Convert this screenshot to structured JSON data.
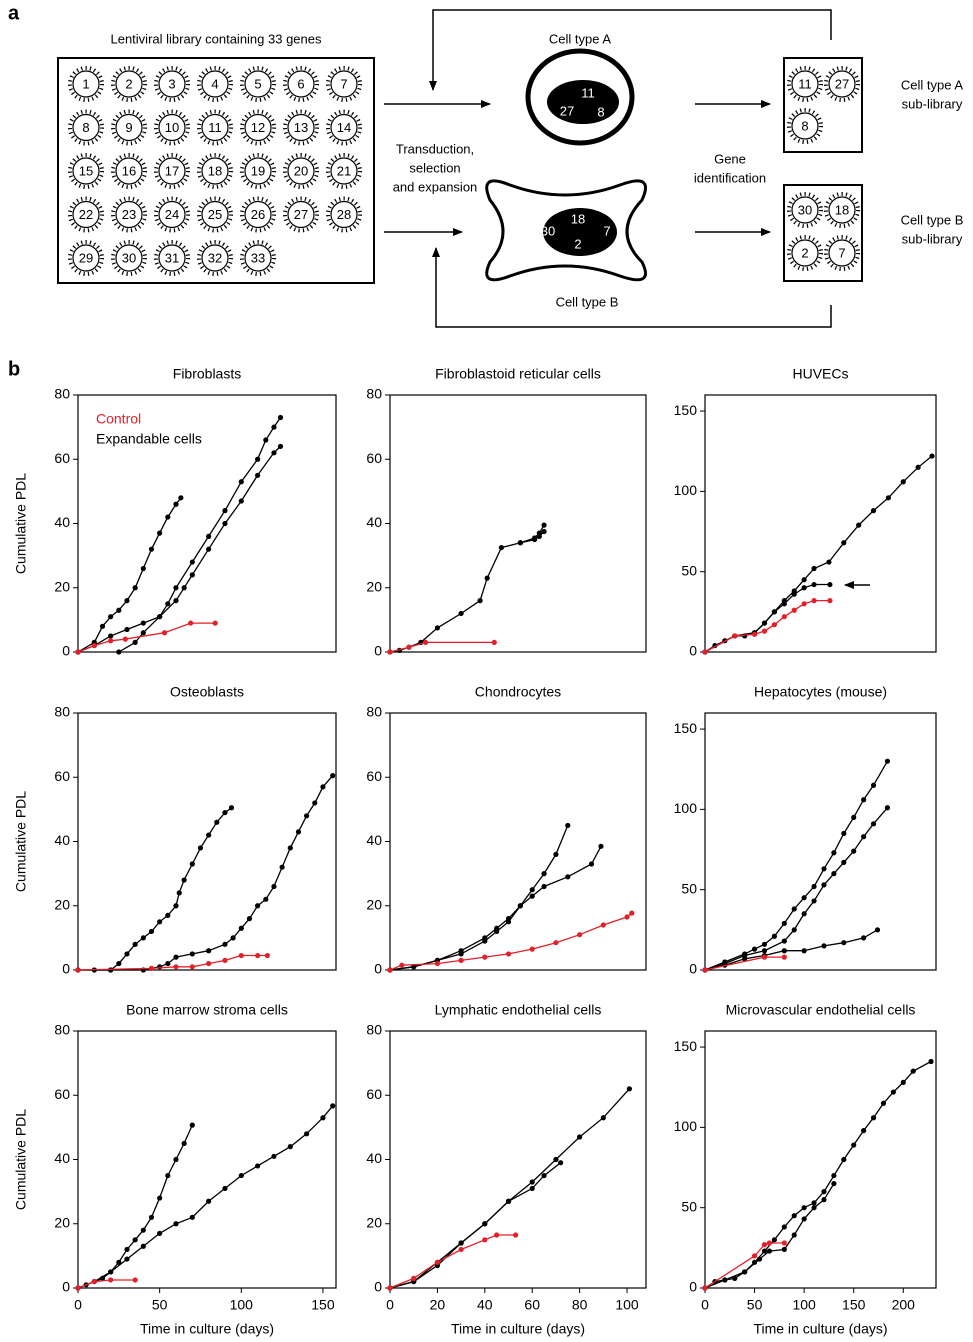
{
  "panel_a": {
    "label": "a",
    "library_title": "Lentiviral library containing 33 genes",
    "library_genes": [
      1,
      2,
      3,
      4,
      5,
      6,
      7,
      8,
      9,
      10,
      11,
      12,
      13,
      14,
      15,
      16,
      17,
      18,
      19,
      20,
      21,
      22,
      23,
      24,
      25,
      26,
      27,
      28,
      29,
      30,
      31,
      32,
      33
    ],
    "cell_a": {
      "name": "Cell type A",
      "genes": [
        11,
        27,
        8
      ]
    },
    "cell_b": {
      "name": "Cell type B",
      "genes": [
        30,
        18,
        2,
        7
      ]
    },
    "step_1": [
      "Transduction,",
      "selection",
      "and expansion"
    ],
    "step_2": [
      "Gene",
      "identification"
    ],
    "sublibrary_a": {
      "genes": [
        11,
        27,
        8
      ],
      "label": [
        "Cell type A",
        "sub-library"
      ]
    },
    "sublibrary_b": {
      "genes": [
        30,
        18,
        2,
        7
      ],
      "label": [
        "Cell type B",
        "sub-library"
      ]
    }
  },
  "panel_b_label": "b",
  "chart_data": [
    {
      "type": "line",
      "title": "Fibroblasts",
      "ylabel": "Cumulative PDL",
      "xlim": [
        0,
        158
      ],
      "ylim": [
        0,
        80
      ],
      "yticks": [
        0,
        20,
        40,
        60,
        80
      ],
      "legend_loc": "upper left",
      "legend": [
        {
          "name": "Control",
          "color": "#e3202a"
        },
        {
          "name": "Expandable cells",
          "color": "#000000"
        }
      ],
      "series": [
        {
          "color": "#000000",
          "x": [
            0,
            10,
            15,
            20,
            25,
            30,
            35,
            40,
            45,
            50,
            55,
            60,
            63
          ],
          "values": [
            0,
            3,
            8,
            11,
            13,
            16,
            20,
            26,
            32,
            37,
            42,
            46,
            48
          ]
        },
        {
          "color": "#000000",
          "x": [
            0,
            10,
            20,
            30,
            40,
            50,
            55,
            60,
            70,
            80,
            90,
            100,
            110,
            115,
            120,
            124
          ],
          "values": [
            0,
            2,
            5,
            7,
            9,
            11,
            15,
            20,
            28,
            36,
            44,
            53,
            60,
            66,
            70,
            73
          ]
        },
        {
          "color": "#000000",
          "x": [
            25,
            35,
            40,
            50,
            60,
            65,
            70,
            80,
            90,
            100,
            110,
            120,
            124
          ],
          "values": [
            0,
            3,
            6,
            11,
            16,
            20,
            24,
            32,
            40,
            47,
            55,
            62,
            64
          ]
        },
        {
          "color": "#e3202a",
          "x": [
            0,
            10,
            20,
            29,
            53,
            69,
            84
          ],
          "values": [
            0,
            2,
            3.5,
            4,
            6,
            9,
            9
          ]
        }
      ]
    },
    {
      "type": "line",
      "title": "Fibroblastoid reticular cells",
      "xlim": [
        0,
        108
      ],
      "ylim": [
        0,
        80
      ],
      "yticks": [
        0,
        20,
        40,
        60,
        80
      ],
      "series": [
        {
          "color": "#000000",
          "x": [
            0,
            4,
            8,
            13,
            20,
            30,
            38,
            41,
            47,
            55,
            61,
            63,
            65
          ],
          "values": [
            0,
            0.5,
            1.5,
            3,
            7.5,
            12,
            16,
            23,
            32.5,
            34,
            35.5,
            37,
            39.5
          ]
        },
        {
          "color": "#000000",
          "x": [
            55,
            61,
            63,
            65
          ],
          "values": [
            34,
            35,
            36,
            37.5
          ]
        },
        {
          "color": "#e3202a",
          "x": [
            0,
            8,
            15,
            44
          ],
          "values": [
            0,
            1.5,
            3,
            3
          ]
        }
      ]
    },
    {
      "type": "line",
      "title": "HUVECs",
      "xlim": [
        0,
        233
      ],
      "ylim": [
        0,
        160
      ],
      "yticks": [
        0,
        50,
        100,
        150
      ],
      "series": [
        {
          "color": "#000000",
          "x": [
            0,
            10,
            20,
            30,
            40,
            50,
            60,
            70,
            80,
            90,
            100,
            110,
            125,
            140,
            155,
            170,
            185,
            200,
            215,
            229
          ],
          "values": [
            0,
            4,
            7,
            10,
            10,
            12,
            18,
            25,
            32,
            38,
            45,
            52,
            56,
            68,
            79,
            88,
            96,
            106,
            115,
            122
          ]
        },
        {
          "color": "#000000",
          "x": [
            0,
            30,
            50,
            60,
            70,
            80,
            90,
            100,
            110,
            126
          ],
          "values": [
            0,
            10,
            12,
            18,
            25,
            30,
            36,
            40,
            42,
            42
          ]
        },
        {
          "color": "#e3202a",
          "x": [
            0,
            30,
            50,
            60,
            70,
            80,
            90,
            100,
            110,
            126
          ],
          "values": [
            0,
            10,
            11,
            13,
            17,
            22,
            26,
            30,
            32,
            32
          ]
        }
      ]
    },
    {
      "type": "line",
      "title": "Osteoblasts",
      "ylabel": "Cumulative PDL",
      "xlim": [
        0,
        158
      ],
      "ylim": [
        0,
        80
      ],
      "yticks": [
        0,
        20,
        40,
        60,
        80
      ],
      "series": [
        {
          "color": "#000000",
          "x": [
            0,
            10,
            20,
            25,
            30,
            35,
            40,
            45,
            50,
            55,
            60,
            62,
            65,
            70,
            75,
            80,
            85,
            90,
            94
          ],
          "values": [
            0,
            0,
            0,
            2,
            5,
            8,
            10,
            12,
            15,
            17,
            20,
            24,
            28,
            33,
            38,
            42,
            46,
            49,
            50.5
          ]
        },
        {
          "color": "#000000",
          "x": [
            0,
            20,
            40,
            50,
            55,
            60,
            70,
            80,
            90,
            95,
            100,
            105,
            110,
            115,
            120,
            125,
            130,
            135,
            140,
            145,
            150,
            156
          ],
          "values": [
            0,
            0,
            0,
            1,
            2,
            4,
            5,
            6,
            8,
            10,
            13,
            16,
            20,
            22,
            26,
            32,
            38,
            43,
            48,
            52,
            57,
            60.5
          ]
        },
        {
          "color": "#e3202a",
          "x": [
            0,
            45,
            60,
            70,
            80,
            90,
            100,
            110,
            116
          ],
          "values": [
            0,
            0.5,
            1,
            1,
            2,
            3,
            4.5,
            4.5,
            4.5
          ]
        }
      ]
    },
    {
      "type": "line",
      "title": "Chondrocytes",
      "xlim": [
        0,
        108
      ],
      "ylim": [
        0,
        80
      ],
      "yticks": [
        0,
        20,
        40,
        60,
        80
      ],
      "series": [
        {
          "color": "#000000",
          "x": [
            0,
            10,
            20,
            30,
            40,
            45,
            50,
            55,
            60,
            65,
            70,
            75
          ],
          "values": [
            0,
            1,
            3,
            6,
            10,
            13,
            16,
            20,
            25,
            30,
            36,
            45
          ]
        },
        {
          "color": "#000000",
          "x": [
            0,
            10,
            20,
            30,
            40,
            45,
            50,
            55,
            60,
            65,
            75,
            85,
            89
          ],
          "values": [
            0,
            1,
            3,
            5,
            9,
            12,
            15,
            20,
            23,
            26,
            29,
            33,
            38.5
          ]
        },
        {
          "color": "#e3202a",
          "x": [
            0,
            5,
            20,
            30,
            40,
            50,
            60,
            70,
            80,
            90,
            100,
            102
          ],
          "values": [
            0,
            1.5,
            2,
            3,
            4,
            5,
            6.5,
            8.5,
            11,
            14,
            16.5,
            17.7
          ]
        }
      ]
    },
    {
      "type": "line",
      "title": "Hepatocytes (mouse)",
      "xlim": [
        0,
        233
      ],
      "ylim": [
        0,
        160
      ],
      "yticks": [
        0,
        50,
        100,
        150
      ],
      "series": [
        {
          "color": "#000000",
          "x": [
            0,
            20,
            40,
            50,
            60,
            70,
            80,
            90,
            100,
            110,
            120,
            130,
            140,
            150,
            160,
            170,
            184
          ],
          "values": [
            0,
            5,
            10,
            13,
            16,
            21,
            29,
            38,
            45,
            52,
            63,
            73,
            85,
            95,
            106,
            115,
            130
          ]
        },
        {
          "color": "#000000",
          "x": [
            0,
            20,
            40,
            60,
            80,
            90,
            100,
            110,
            120,
            130,
            140,
            150,
            160,
            170,
            184
          ],
          "values": [
            0,
            4,
            9,
            12,
            18,
            25,
            35,
            43,
            53,
            60,
            67,
            74,
            83,
            91,
            101
          ]
        },
        {
          "color": "#000000",
          "x": [
            0,
            20,
            40,
            60,
            80,
            100,
            120,
            140,
            160,
            174
          ],
          "values": [
            0,
            3,
            7,
            9,
            12,
            12,
            15,
            17,
            20,
            25
          ]
        },
        {
          "color": "#e3202a",
          "x": [
            0,
            60,
            80
          ],
          "values": [
            0,
            8,
            8
          ]
        }
      ]
    },
    {
      "type": "line",
      "title": "Bone marrow stroma cells",
      "ylabel": "Cumulative PDL",
      "xlabel": "Time in culture (days)",
      "xlim": [
        0,
        158
      ],
      "xticks": [
        0,
        50,
        100,
        150
      ],
      "ylim": [
        0,
        80
      ],
      "yticks": [
        0,
        20,
        40,
        60,
        80
      ],
      "series": [
        {
          "color": "#000000",
          "x": [
            0,
            5,
            10,
            15,
            20,
            25,
            30,
            35,
            40,
            45,
            50,
            55,
            60,
            65,
            70
          ],
          "values": [
            0,
            1,
            2,
            3,
            5,
            8,
            12,
            15,
            18,
            22,
            28,
            35,
            40,
            45,
            50.7
          ]
        },
        {
          "color": "#000000",
          "x": [
            0,
            10,
            20,
            30,
            40,
            50,
            60,
            70,
            80,
            90,
            100,
            110,
            120,
            130,
            140,
            150,
            156
          ],
          "values": [
            0,
            2,
            5,
            9,
            13,
            17,
            20,
            22,
            27,
            31,
            35,
            38,
            41,
            44,
            48,
            53,
            56.7
          ]
        },
        {
          "color": "#e3202a",
          "x": [
            0,
            10,
            20,
            35
          ],
          "values": [
            0,
            2,
            2.5,
            2.5
          ]
        }
      ]
    },
    {
      "type": "line",
      "title": "Lymphatic endothelial cells",
      "xlabel": "Time in culture (days)",
      "xlim": [
        0,
        108
      ],
      "xticks": [
        0,
        20,
        40,
        60,
        80,
        100
      ],
      "ylim": [
        0,
        80
      ],
      "yticks": [
        0,
        20,
        40,
        60,
        80
      ],
      "series": [
        {
          "color": "#000000",
          "x": [
            0,
            10,
            20,
            30,
            40,
            50,
            60,
            70,
            80,
            90,
            101
          ],
          "values": [
            0,
            2,
            7,
            14,
            20,
            27,
            33,
            40,
            47,
            53,
            62
          ]
        },
        {
          "color": "#000000",
          "x": [
            0,
            10,
            20,
            30,
            40,
            50,
            60,
            65,
            72
          ],
          "values": [
            0,
            2,
            8,
            14,
            20,
            27,
            31,
            35,
            39
          ]
        },
        {
          "color": "#e3202a",
          "x": [
            0,
            10,
            20,
            30,
            40,
            45,
            53
          ],
          "values": [
            0,
            3,
            8,
            12,
            15,
            16.5,
            16.5
          ]
        }
      ]
    },
    {
      "type": "line",
      "title": "Microvascular endothelial cells",
      "xlabel": "Time in culture (days)",
      "xlim": [
        0,
        233
      ],
      "xticks": [
        0,
        50,
        100,
        150,
        200
      ],
      "ylim": [
        0,
        160
      ],
      "yticks": [
        0,
        50,
        100,
        150
      ],
      "series": [
        {
          "color": "#000000",
          "x": [
            0,
            10,
            20,
            30,
            40,
            50,
            60,
            70,
            80,
            90,
            100,
            110,
            120,
            130,
            140,
            150,
            160,
            170,
            180,
            190,
            200,
            210,
            228
          ],
          "values": [
            0,
            4,
            5,
            6,
            10,
            16,
            23,
            30,
            38,
            45,
            50,
            53,
            60,
            70,
            80,
            89,
            98,
            106,
            115,
            122,
            128,
            135,
            141
          ]
        },
        {
          "color": "#000000",
          "x": [
            0,
            20,
            40,
            55,
            65,
            80,
            90,
            100,
            110,
            120,
            130
          ],
          "values": [
            0,
            5,
            10,
            18,
            23,
            24,
            33,
            43,
            50,
            55,
            65
          ]
        },
        {
          "color": "#e3202a",
          "x": [
            0,
            50,
            60,
            65,
            80
          ],
          "values": [
            0,
            20,
            27,
            28,
            28
          ]
        }
      ]
    }
  ]
}
